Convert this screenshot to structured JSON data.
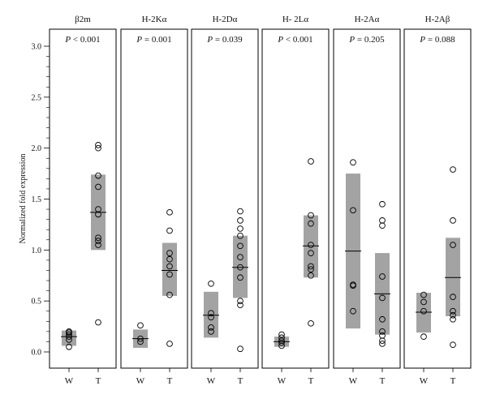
{
  "chart_data": {
    "type": "scatter",
    "ylabel": "Normalized fold expression",
    "ylim": [
      0,
      3.0
    ],
    "yticks": [
      "0.0",
      "0.5",
      "1.0",
      "1.5",
      "2.0",
      "2.5",
      "3.0"
    ],
    "categories": [
      "W",
      "T"
    ],
    "box_color": "#a3a3a3",
    "panels": [
      {
        "title": "β2m",
        "p_label": "P",
        "p_text": " < 0.001",
        "W": {
          "box": [
            0.06,
            0.21
          ],
          "median": 0.15,
          "points": [
            0.05,
            0.12,
            0.15,
            0.17,
            0.19,
            0.2
          ]
        },
        "T": {
          "box": [
            1.0,
            1.74
          ],
          "median": 1.37,
          "points": [
            0.29,
            1.05,
            1.09,
            1.12,
            1.35,
            1.4,
            1.62,
            1.73,
            2.0,
            2.03
          ]
        }
      },
      {
        "title": "H-2Kα",
        "p_label": "P",
        "p_text": " = 0.001",
        "W": {
          "box": [
            0.04,
            0.22
          ],
          "median": 0.13,
          "points": [
            0.1,
            0.13,
            0.26
          ]
        },
        "T": {
          "box": [
            0.55,
            1.07
          ],
          "median": 0.8,
          "points": [
            0.08,
            0.56,
            0.76,
            0.84,
            0.91,
            0.97,
            1.19,
            1.37
          ]
        }
      },
      {
        "title": "H-2Dα",
        "p_label": "P",
        "p_text": " = 0.039",
        "W": {
          "box": [
            0.14,
            0.59
          ],
          "median": 0.36,
          "points": [
            0.2,
            0.24,
            0.34,
            0.38,
            0.67
          ]
        },
        "T": {
          "box": [
            0.53,
            1.14
          ],
          "median": 0.83,
          "points": [
            0.03,
            0.46,
            0.5,
            0.73,
            0.83,
            0.93,
            1.04,
            1.14,
            1.21,
            1.29,
            1.38
          ]
        }
      },
      {
        "title": "H- 2Lα",
        "p_label": "P",
        "p_text": " < 0.001",
        "W": {
          "box": [
            0.05,
            0.15
          ],
          "median": 0.1,
          "points": [
            0.06,
            0.09,
            0.11,
            0.14,
            0.17
          ]
        },
        "T": {
          "box": [
            0.73,
            1.34
          ],
          "median": 1.04,
          "points": [
            0.28,
            0.75,
            0.81,
            0.84,
            0.97,
            1.05,
            1.26,
            1.34,
            1.87
          ]
        }
      },
      {
        "title": "H-2Aα",
        "p_label": "P",
        "p_text": " = 0.205",
        "W": {
          "box": [
            0.23,
            1.75
          ],
          "median": 0.99,
          "points": [
            0.4,
            0.65,
            0.66,
            1.39,
            1.86
          ]
        },
        "T": {
          "box": [
            0.17,
            0.97
          ],
          "median": 0.57,
          "points": [
            0.08,
            0.11,
            0.16,
            0.2,
            0.32,
            0.53,
            0.74,
            1.24,
            1.29,
            1.45
          ]
        }
      },
      {
        "title": "H-2Aβ",
        "p_label": "P",
        "p_text": " = 0.088",
        "W": {
          "box": [
            0.19,
            0.58
          ],
          "median": 0.39,
          "points": [
            0.15,
            0.4,
            0.49,
            0.56
          ]
        },
        "T": {
          "box": [
            0.35,
            1.12
          ],
          "median": 0.73,
          "points": [
            0.07,
            0.32,
            0.36,
            0.4,
            0.54,
            1.05,
            1.29,
            1.79
          ]
        }
      }
    ]
  }
}
